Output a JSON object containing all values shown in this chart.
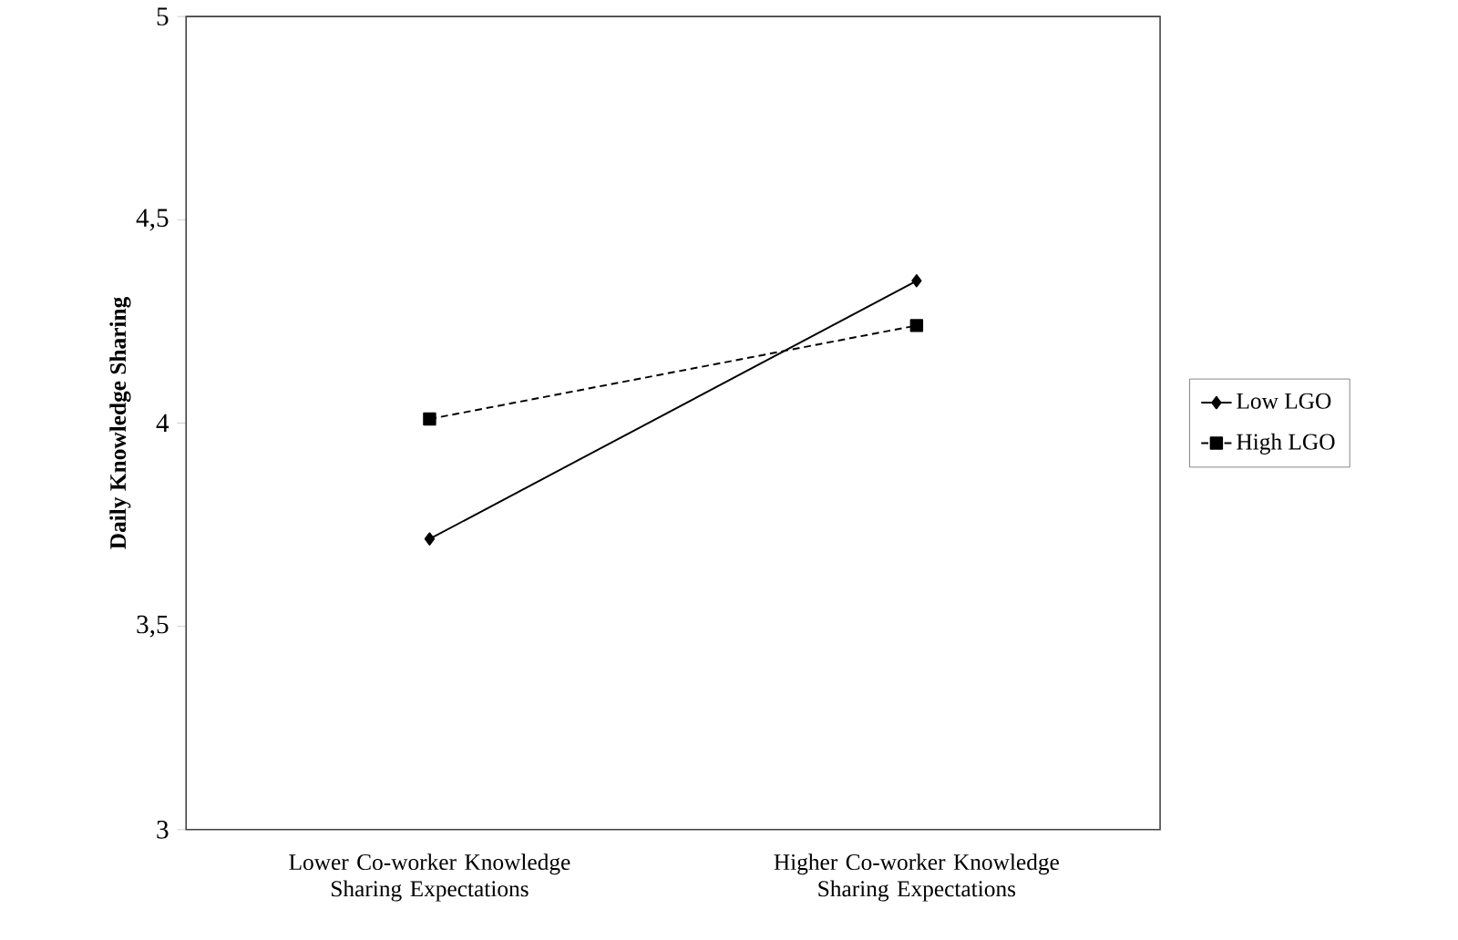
{
  "chart_data": {
    "type": "line",
    "ylabel": "Daily Knowledge Sharing",
    "categories": [
      "Lower Co-worker Knowledge Sharing Expectations",
      "Higher Co-worker Knowledge Sharing Expectations"
    ],
    "series": [
      {
        "name": "Low LGO",
        "color": "#000000",
        "values": [
          3.715,
          4.35
        ],
        "marker": "diamond",
        "line_style": "solid"
      },
      {
        "name": "High LGO",
        "color": "#000000",
        "values": [
          4.01,
          4.24
        ],
        "marker": "square",
        "line_style": "dashed"
      }
    ],
    "ylim": [
      3,
      5
    ],
    "yticks": [
      3,
      {
        "value": 3.5,
        "label": "3,5"
      },
      4,
      {
        "value": 4.5,
        "label": "4,5"
      },
      5
    ],
    "grid": false,
    "legend": "right"
  }
}
